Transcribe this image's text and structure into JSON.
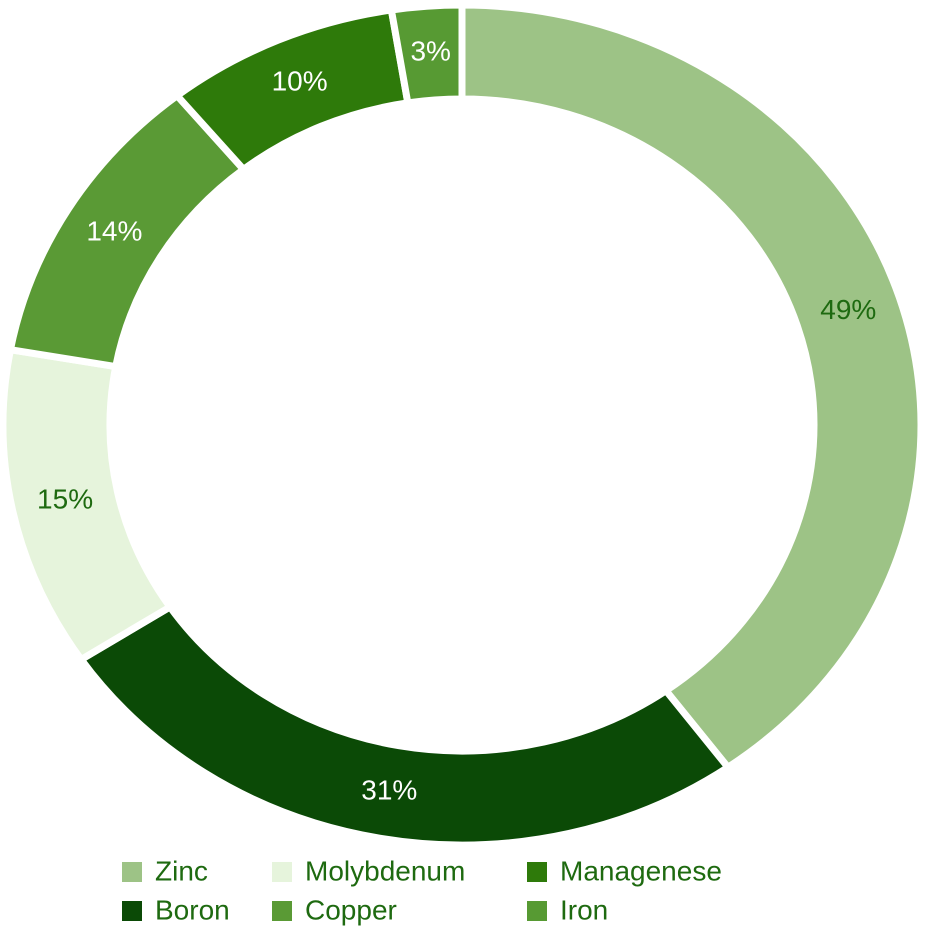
{
  "chart_data": {
    "type": "donut",
    "categories": [
      "Zinc",
      "Boron",
      "Molybdenum",
      "Copper",
      "Managenese",
      "Iron"
    ],
    "values": [
      49,
      31,
      15,
      14,
      10,
      3
    ],
    "value_labels": [
      "49%",
      "31%",
      "15%",
      "14%",
      "10%",
      "3%"
    ],
    "colors": [
      "#9dc386",
      "#0b4a06",
      "#e6f4dc",
      "#5a9a35",
      "#2e7a0a",
      "#579a33"
    ],
    "legend": "bottom"
  }
}
